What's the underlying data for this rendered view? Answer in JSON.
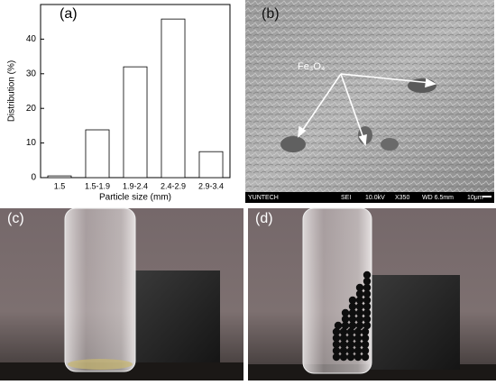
{
  "chart_data": {
    "type": "bar",
    "y_label": "Distribution (%)",
    "x_label": "Particle size (mm)",
    "categories": [
      "1.5",
      "1.5-1.9",
      "1.9-2.4",
      "2.4-2.9",
      "2.9-3.4"
    ],
    "values": [
      0.5,
      13.8,
      32,
      45.8,
      7.5
    ],
    "color": "#ffffff",
    "ylim": [
      0,
      50
    ],
    "yticks": [
      0,
      10,
      20,
      30,
      40
    ]
  },
  "panels": {
    "a": "(a)",
    "b": "(b)",
    "c": "(c)",
    "d": "(d)"
  },
  "sem": {
    "label": "Fe₃O₄",
    "footer": [
      "YUNTECH",
      "SEI",
      "10.0kV",
      "X350",
      "WD 6.5mm",
      "10μm"
    ]
  }
}
